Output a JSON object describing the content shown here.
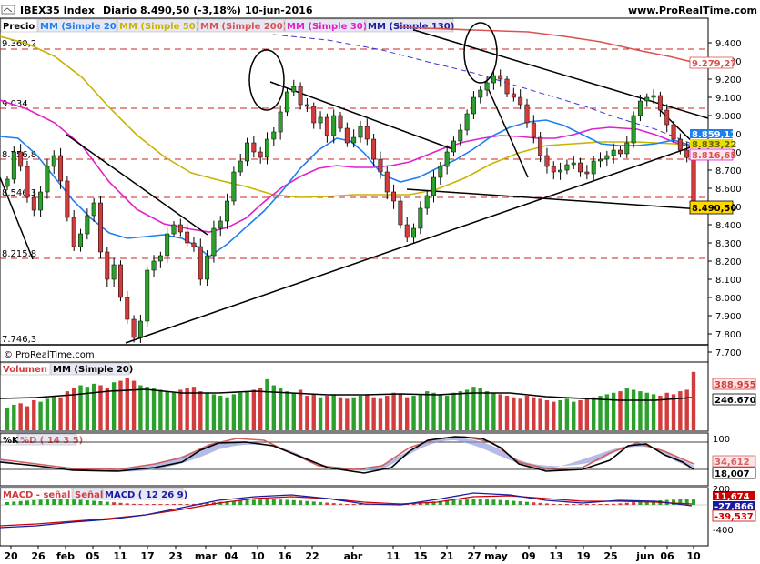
{
  "header": {
    "instrument": "IBEX35 Index",
    "period": "Diario",
    "last": "8.490,50 (-3,18%)",
    "date": "10-jun-2016",
    "brand": "www.ProRealTime.com",
    "copyright": "© ProRealTime.com"
  },
  "legend": {
    "price": "Precio",
    "ma20": "MM (Simple 20)",
    "ma50": "MM (Simple 50)",
    "ma200": "MM (Simple 200)",
    "ma30": "MM (Simple 30)",
    "ma130": "MM (Simple 130)",
    "volume": "Volumen",
    "volume_ma": "MM (Simple 20)",
    "stoch_k": "%K",
    "stoch_d": "%D ( 14 3 5)",
    "macd_signal": "MACD - señal",
    "macd_signal2": "Señal",
    "macd": "MACD ( 12 26 9)"
  },
  "colors": {
    "ma20": "#1e7ff0",
    "ma50": "#c8b400",
    "ma200": "#d9534f",
    "ma30": "#e020c8",
    "ma130": "#1b1ba0",
    "bull": "#2ca02c",
    "bear": "#d23c3c",
    "signal_line": "#cc0000",
    "stoch_d": "#d26060"
  },
  "chart_data": {
    "type": "line",
    "price_axis": {
      "ylim": [
        7700,
        9460
      ],
      "ticks": [
        "9.400",
        "9.300",
        "9.200",
        "9.100",
        "9.000",
        "8.900",
        "8.800",
        "8.700",
        "8.600",
        "8.500",
        "8.400",
        "8.300",
        "8.200",
        "8.100",
        "8.000",
        "7.900",
        "7.800",
        "7.700"
      ]
    },
    "horizontal_levels": [
      "9.360,2",
      "9.034",
      "8.756,8",
      "8.546,3",
      "8.215,8",
      "7.746,3"
    ],
    "right_labels": {
      "ma200": "9.279,27",
      "ma20": "8.859,11",
      "ma50": "8.833,22",
      "ma30": "8.816,65",
      "last": "8.490,50",
      "volume": "388.955",
      "volume_ma": "246.670",
      "stoch_d": "34,612",
      "stoch_k": "18,007",
      "macd_signal": "11,674",
      "macd": "-27,866",
      "macd_hist": "-39,537"
    },
    "x_ticks": [
      "20",
      "26",
      "feb",
      "05",
      "11",
      "17",
      "23",
      "mar",
      "04",
      "10",
      "16",
      "22",
      "abr",
      "11",
      "15",
      "21",
      "27",
      "may",
      "09",
      "13",
      "19",
      "25",
      "jun",
      "06",
      "10"
    ],
    "stoch_axis": [
      "100",
      "0"
    ],
    "macd_axis": [
      "200",
      "-200",
      "-400"
    ],
    "closes": [
      8650,
      8800,
      8720,
      8550,
      8480,
      8580,
      8720,
      8780,
      8640,
      8440,
      8280,
      8350,
      8450,
      8520,
      8250,
      8100,
      8180,
      8000,
      7880,
      7780,
      7870,
      8150,
      8200,
      8230,
      8350,
      8400,
      8360,
      8300,
      8280,
      8100,
      8230,
      8380,
      8420,
      8530,
      8690,
      8750,
      8850,
      8800,
      8770,
      8870,
      8910,
      9020,
      9130,
      9160,
      9060,
      9050,
      8960,
      8990,
      8890,
      9000,
      8930,
      8850,
      8880,
      8940,
      8870,
      8760,
      8690,
      8580,
      8530,
      8400,
      8330,
      8380,
      8490,
      8560,
      8660,
      8720,
      8800,
      8860,
      8920,
      9010,
      9100,
      9140,
      9180,
      9220,
      9200,
      9120,
      9100,
      9060,
      8960,
      8880,
      8780,
      8720,
      8690,
      8700,
      8730,
      8740,
      8690,
      8680,
      8750,
      8760,
      8780,
      8810,
      8790,
      8850,
      9000,
      9080,
      9100,
      9110,
      9030,
      8950,
      8870,
      8810,
      8769,
      8490
    ],
    "volumes": [
      150,
      170,
      180,
      160,
      200,
      190,
      210,
      230,
      220,
      260,
      280,
      300,
      290,
      310,
      300,
      280,
      320,
      330,
      350,
      330,
      300,
      290,
      280,
      270,
      260,
      250,
      270,
      280,
      290,
      260,
      250,
      240,
      230,
      220,
      240,
      250,
      260,
      270,
      280,
      340,
      300,
      280,
      260,
      250,
      270,
      230,
      240,
      220,
      230,
      240,
      220,
      210,
      220,
      230,
      240,
      220,
      210,
      230,
      250,
      240,
      220,
      230,
      240,
      260,
      250,
      240,
      230,
      250,
      260,
      270,
      290,
      280,
      260,
      250,
      240,
      230,
      220,
      210,
      230,
      220,
      210,
      200,
      190,
      200,
      210,
      190,
      200,
      210,
      220,
      230,
      240,
      250,
      260,
      280,
      270,
      260,
      250,
      240,
      230,
      250,
      240,
      260,
      270,
      389
    ]
  }
}
